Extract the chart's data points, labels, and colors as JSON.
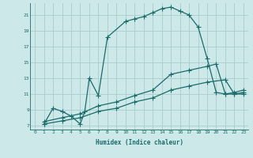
{
  "xlabel": "Humidex (Indice chaleur)",
  "background_color": "#cce8e8",
  "grid_color": "#aacccc",
  "line_color": "#1a6b6b",
  "xlim": [
    -0.5,
    23.5
  ],
  "ylim": [
    6.5,
    22.5
  ],
  "xticks": [
    0,
    1,
    2,
    3,
    4,
    5,
    6,
    7,
    8,
    9,
    10,
    11,
    12,
    13,
    14,
    15,
    16,
    17,
    18,
    19,
    20,
    21,
    22,
    23
  ],
  "yticks": [
    7,
    9,
    11,
    13,
    15,
    17,
    19,
    21
  ],
  "line1_x": [
    1,
    2,
    3,
    4,
    5,
    5.5,
    6,
    7,
    8,
    10,
    11,
    12,
    13,
    14,
    15,
    16,
    17,
    18,
    19,
    20,
    21,
    22,
    23
  ],
  "line1_y": [
    7.2,
    9.2,
    8.8,
    8.2,
    7.2,
    8.8,
    13.0,
    10.8,
    18.2,
    20.2,
    20.5,
    20.8,
    21.3,
    21.8,
    22.0,
    21.5,
    21.0,
    19.5,
    15.5,
    11.2,
    11.0,
    11.0,
    11.0
  ],
  "line2_x": [
    1,
    3,
    5,
    7,
    9,
    11,
    13,
    15,
    17,
    19,
    20,
    21,
    22,
    23
  ],
  "line2_y": [
    7.5,
    8.0,
    8.5,
    9.5,
    10.0,
    10.8,
    11.5,
    13.5,
    14.0,
    14.5,
    14.8,
    11.0,
    11.2,
    11.5
  ],
  "line3_x": [
    1,
    3,
    5,
    7,
    9,
    11,
    13,
    15,
    17,
    19,
    21,
    22,
    23
  ],
  "line3_y": [
    7.2,
    7.6,
    8.0,
    8.8,
    9.2,
    10.0,
    10.5,
    11.5,
    12.0,
    12.5,
    12.8,
    11.0,
    11.2
  ]
}
